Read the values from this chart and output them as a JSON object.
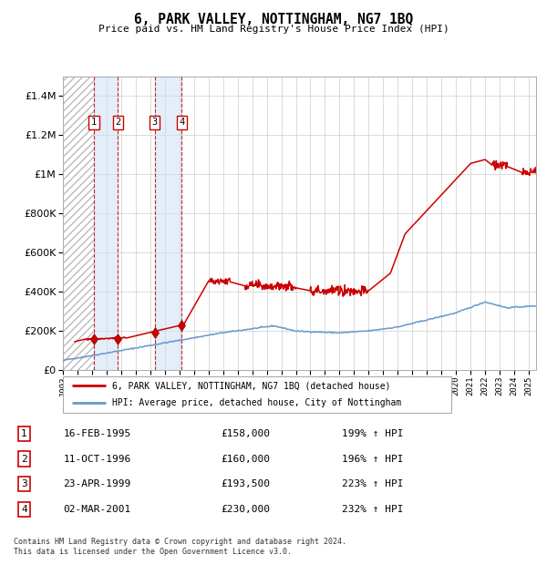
{
  "title": "6, PARK VALLEY, NOTTINGHAM, NG7 1BQ",
  "subtitle": "Price paid vs. HM Land Registry's House Price Index (HPI)",
  "legend_line1": "6, PARK VALLEY, NOTTINGHAM, NG7 1BQ (detached house)",
  "legend_line2": "HPI: Average price, detached house, City of Nottingham",
  "transactions": [
    {
      "num": 1,
      "date": "16-FEB-1995",
      "price": 158000,
      "hpi_pct": "199%",
      "year": 1995.12
    },
    {
      "num": 2,
      "date": "11-OCT-1996",
      "price": 160000,
      "hpi_pct": "196%",
      "year": 1996.78
    },
    {
      "num": 3,
      "date": "23-APR-1999",
      "price": 193500,
      "hpi_pct": "223%",
      "year": 1999.31
    },
    {
      "num": 4,
      "date": "02-MAR-2001",
      "price": 230000,
      "hpi_pct": "232%",
      "year": 2001.17
    }
  ],
  "footer": "Contains HM Land Registry data © Crown copyright and database right 2024.\nThis data is licensed under the Open Government Licence v3.0.",
  "hpi_color": "#6699cc",
  "price_color": "#cc0000",
  "marker_color": "#cc0000",
  "grid_color": "#cccccc",
  "ylim": [
    0,
    1500000
  ],
  "yticks": [
    0,
    200000,
    400000,
    600000,
    800000,
    1000000,
    1200000,
    1400000
  ],
  "xlim_start": 1993.0,
  "xlim_end": 2025.5
}
